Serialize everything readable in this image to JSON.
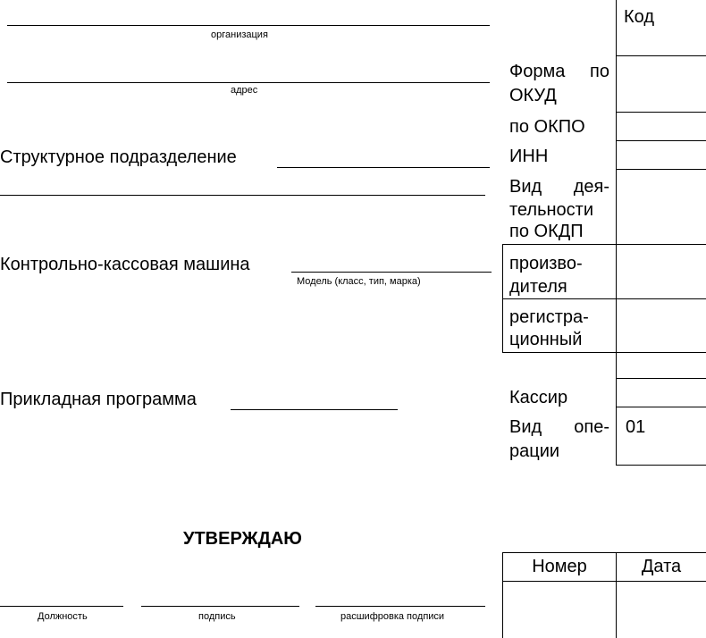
{
  "header": {
    "organization_caption": "организация",
    "address_caption": "адрес",
    "department_label": "Структурное подразделение",
    "cash_register_label": "Контрольно-кассовая машина",
    "model_caption": "Модель (класс, тип, марка)",
    "application_label": "Прикладная программа"
  },
  "codes": {
    "code_header": "Код",
    "okud_1a": "Форма",
    "okud_1b": "по",
    "okud_2": "ОКУД",
    "okpo": "по ОКПО",
    "inn": "ИНН",
    "okdp_1a": "Вид",
    "okdp_1b": "дея-",
    "okdp_2": "тельности",
    "okdp_3": "по ОКДП",
    "manufacturer_1": "произво-",
    "manufacturer_2": "дителя",
    "registration_1": "регистра-",
    "registration_2": "ционный",
    "cashier": "Кассир",
    "operation_1a": "Вид",
    "operation_1b": "опе-",
    "operation_2": "рации",
    "operation_value": "01"
  },
  "approval": {
    "title": "УТВЕРЖДАЮ",
    "position_caption": "Должность",
    "signature_caption": "подпись",
    "decoding_caption": "расшифровка подписи"
  },
  "doc_table": {
    "number_header": "Номер",
    "date_header": "Дата"
  }
}
